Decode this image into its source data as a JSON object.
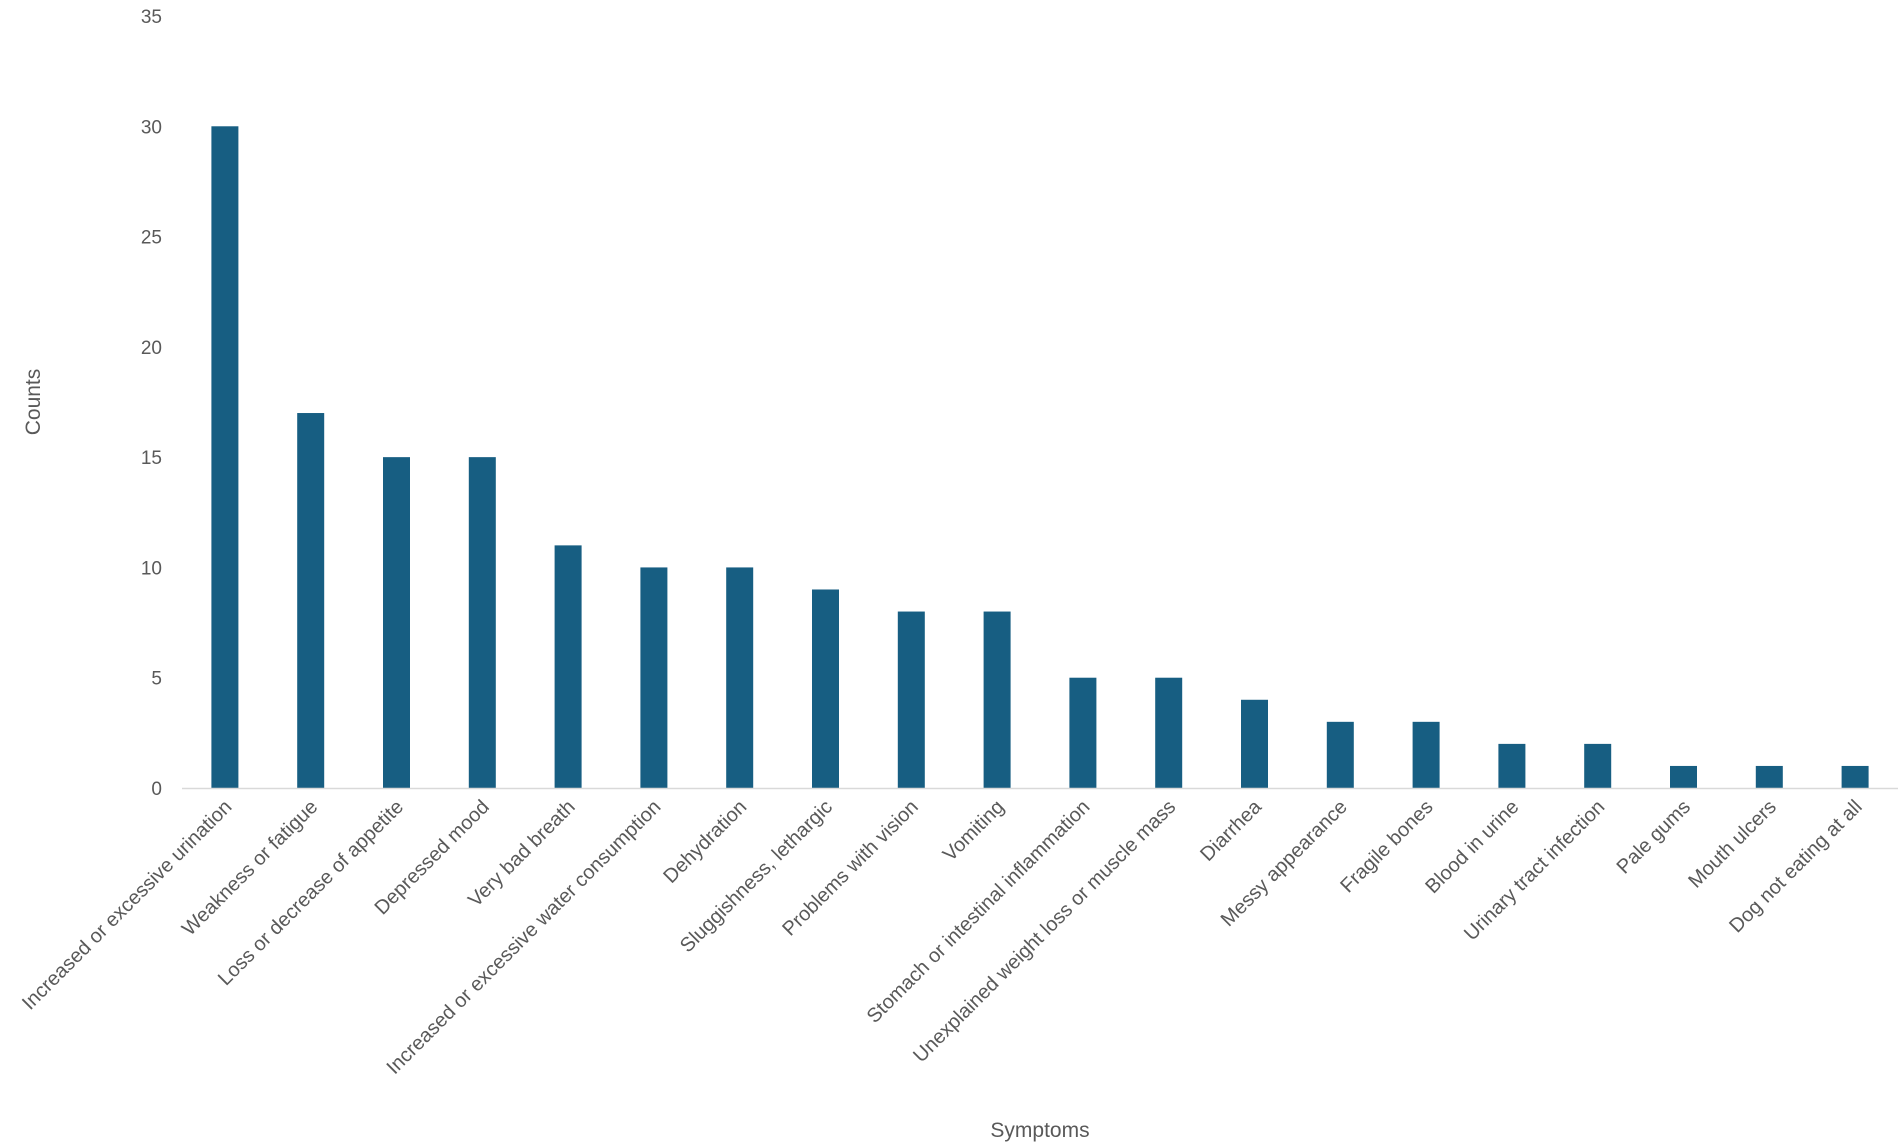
{
  "chart_data": {
    "type": "bar",
    "title": "",
    "xlabel": "Symptoms",
    "ylabel": "Counts",
    "ylim": [
      0,
      35
    ],
    "yticks": [
      0,
      5,
      10,
      15,
      20,
      25,
      30,
      35
    ],
    "grid": false,
    "legend": "none",
    "bar_color": "#175E82",
    "categories": [
      "Increased or excessive urination",
      "Weakness or fatigue",
      "Loss or decrease of appetite",
      "Depressed mood",
      "Very bad breath",
      "Increased or excessive water consumption",
      "Dehydration",
      "Sluggishness, lethargic",
      "Problems with vision",
      "Vomiting",
      "Stomach or intestinal inflammation",
      "Unexplained weight loss or muscle mass",
      "Diarrhea",
      "Messy appearance",
      "Fragile bones",
      "Blood in urine",
      "Urinary tract infection",
      "Pale gums",
      "Mouth ulcers",
      "Dog not eating at all"
    ],
    "values": [
      30,
      17,
      15,
      15,
      11,
      10,
      10,
      9,
      8,
      8,
      5,
      5,
      4,
      3,
      3,
      2,
      2,
      1,
      1,
      1
    ]
  }
}
